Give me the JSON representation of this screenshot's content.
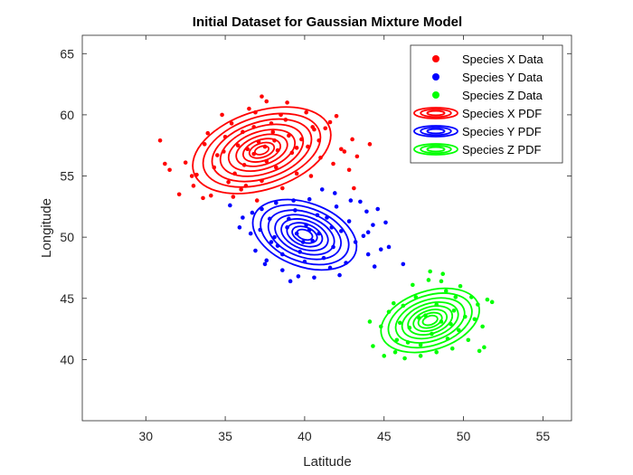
{
  "chart_data": {
    "type": "scatter",
    "title": "Initial Dataset for Gaussian Mixture Model",
    "xlabel": "Latitude",
    "ylabel": "Longitude",
    "xlim": [
      26,
      56.8
    ],
    "ylim": [
      35,
      66.5
    ],
    "xticks": [
      30,
      35,
      40,
      45,
      50,
      55
    ],
    "yticks": [
      40,
      45,
      50,
      55,
      60,
      65
    ],
    "grid": false,
    "legend_position": "top-right",
    "series": [
      {
        "name": "Species X Data",
        "color": "#ff0000",
        "marker": "dot",
        "center": [
          37.0,
          57.0
        ],
        "points": [
          [
            33.2,
            55.1
          ],
          [
            34.5,
            56.7
          ],
          [
            35.0,
            58.2
          ],
          [
            35.8,
            57.5
          ],
          [
            36.2,
            55.9
          ],
          [
            36.8,
            59.0
          ],
          [
            37.1,
            57.8
          ],
          [
            37.6,
            56.2
          ],
          [
            38.0,
            58.6
          ],
          [
            38.3,
            57.1
          ],
          [
            38.8,
            59.6
          ],
          [
            39.2,
            56.9
          ],
          [
            39.8,
            58.0
          ],
          [
            40.2,
            57.4
          ],
          [
            40.6,
            58.8
          ],
          [
            41.0,
            56.5
          ],
          [
            36.0,
            53.9
          ],
          [
            35.2,
            54.5
          ],
          [
            34.1,
            53.4
          ],
          [
            33.0,
            54.2
          ],
          [
            32.1,
            53.5
          ],
          [
            32.5,
            56.1
          ],
          [
            31.5,
            55.5
          ],
          [
            30.9,
            57.9
          ],
          [
            31.2,
            56.0
          ],
          [
            34.8,
            60.0
          ],
          [
            36.5,
            60.5
          ],
          [
            37.3,
            61.5
          ],
          [
            37.6,
            61.1
          ],
          [
            36.9,
            60.2
          ],
          [
            38.5,
            60.0
          ],
          [
            40.1,
            60.2
          ],
          [
            41.6,
            59.4
          ],
          [
            42.3,
            57.2
          ],
          [
            43.0,
            58.0
          ],
          [
            43.3,
            56.6
          ],
          [
            42.8,
            55.5
          ],
          [
            41.8,
            56.0
          ],
          [
            40.4,
            55.0
          ],
          [
            39.5,
            55.2
          ],
          [
            38.2,
            55.7
          ],
          [
            37.3,
            54.6
          ],
          [
            36.3,
            54.2
          ],
          [
            35.6,
            55.2
          ],
          [
            34.3,
            55.7
          ],
          [
            33.7,
            57.6
          ],
          [
            33.9,
            58.5
          ],
          [
            35.4,
            59.3
          ],
          [
            36.1,
            58.6
          ],
          [
            37.9,
            59.3
          ],
          [
            39.0,
            58.3
          ],
          [
            40.9,
            57.9
          ],
          [
            41.3,
            58.9
          ],
          [
            42.0,
            59.9
          ],
          [
            44.1,
            57.6
          ],
          [
            43.1,
            54.0
          ],
          [
            38.6,
            54.0
          ],
          [
            37.0,
            53.0
          ],
          [
            35.5,
            53.3
          ],
          [
            36.8,
            56.8
          ],
          [
            37.5,
            57.4
          ],
          [
            38.1,
            57.9
          ],
          [
            36.4,
            57.2
          ],
          [
            39.5,
            57.3
          ],
          [
            34.9,
            57.0
          ],
          [
            33.6,
            53.2
          ],
          [
            42.5,
            57.0
          ],
          [
            32.9,
            55.0
          ],
          [
            40.5,
            59.0
          ],
          [
            38.9,
            61.0
          ]
        ]
      },
      {
        "name": "Species Y Data",
        "color": "#0000ff",
        "marker": "dot",
        "center": [
          40.0,
          50.2
        ],
        "points": [
          [
            37.2,
            50.6
          ],
          [
            37.8,
            51.5
          ],
          [
            38.3,
            49.3
          ],
          [
            38.9,
            50.8
          ],
          [
            39.4,
            52.2
          ],
          [
            39.7,
            48.8
          ],
          [
            40.1,
            51.0
          ],
          [
            40.5,
            49.7
          ],
          [
            40.9,
            50.3
          ],
          [
            41.4,
            51.6
          ],
          [
            41.8,
            49.2
          ],
          [
            42.3,
            50.5
          ],
          [
            42.8,
            51.3
          ],
          [
            43.2,
            49.6
          ],
          [
            43.7,
            50.1
          ],
          [
            44.0,
            48.6
          ],
          [
            44.4,
            47.6
          ],
          [
            44.8,
            49.0
          ],
          [
            43.9,
            52.1
          ],
          [
            42.9,
            53.0
          ],
          [
            41.9,
            53.6
          ],
          [
            41.1,
            53.9
          ],
          [
            40.3,
            53.1
          ],
          [
            39.3,
            53.0
          ],
          [
            38.2,
            52.8
          ],
          [
            37.3,
            52.3
          ],
          [
            36.7,
            52.0
          ],
          [
            36.1,
            51.6
          ],
          [
            35.3,
            52.6
          ],
          [
            36.6,
            50.3
          ],
          [
            36.9,
            48.9
          ],
          [
            37.6,
            48.1
          ],
          [
            38.6,
            47.3
          ],
          [
            39.6,
            46.8
          ],
          [
            39.1,
            46.4
          ],
          [
            40.6,
            46.7
          ],
          [
            41.6,
            47.5
          ],
          [
            42.6,
            47.9
          ],
          [
            41.2,
            48.3
          ],
          [
            40.0,
            48.0
          ],
          [
            38.6,
            48.6
          ],
          [
            37.9,
            49.6
          ],
          [
            39.9,
            49.6
          ],
          [
            40.8,
            51.8
          ],
          [
            39.0,
            51.5
          ],
          [
            42.0,
            52.5
          ],
          [
            43.5,
            52.9
          ],
          [
            44.6,
            52.3
          ],
          [
            45.1,
            51.2
          ],
          [
            44.3,
            51.0
          ],
          [
            39.5,
            50.3
          ],
          [
            40.3,
            50.6
          ],
          [
            38.1,
            50.0
          ],
          [
            41.7,
            50.8
          ],
          [
            35.9,
            50.8
          ],
          [
            45.3,
            49.2
          ],
          [
            44.0,
            50.4
          ],
          [
            37.5,
            47.8
          ],
          [
            42.2,
            46.9
          ],
          [
            46.2,
            47.8
          ]
        ]
      },
      {
        "name": "Species Z Data",
        "color": "#00ff00",
        "marker": "dot",
        "center": [
          47.8,
          43.2
        ],
        "points": [
          [
            44.8,
            42.7
          ],
          [
            45.3,
            43.9
          ],
          [
            45.8,
            41.6
          ],
          [
            46.2,
            44.4
          ],
          [
            46.6,
            42.6
          ],
          [
            47.0,
            45.1
          ],
          [
            47.3,
            41.2
          ],
          [
            47.6,
            43.6
          ],
          [
            48.0,
            42.1
          ],
          [
            48.3,
            44.5
          ],
          [
            48.6,
            43.1
          ],
          [
            49.0,
            41.7
          ],
          [
            49.4,
            44.0
          ],
          [
            49.7,
            42.4
          ],
          [
            50.1,
            43.5
          ],
          [
            50.5,
            45.1
          ],
          [
            50.9,
            44.5
          ],
          [
            51.2,
            42.7
          ],
          [
            51.5,
            44.9
          ],
          [
            51.8,
            44.7
          ],
          [
            51.3,
            41.0
          ],
          [
            50.3,
            41.6
          ],
          [
            49.3,
            40.9
          ],
          [
            48.3,
            40.6
          ],
          [
            47.3,
            40.3
          ],
          [
            46.3,
            40.1
          ],
          [
            45.7,
            40.6
          ],
          [
            44.3,
            41.1
          ],
          [
            44.1,
            43.1
          ],
          [
            45.0,
            40.3
          ],
          [
            46.8,
            46.1
          ],
          [
            47.8,
            46.5
          ],
          [
            48.6,
            46.4
          ],
          [
            49.8,
            46.0
          ],
          [
            47.9,
            47.2
          ],
          [
            48.7,
            47.0
          ],
          [
            49.2,
            42.9
          ],
          [
            47.2,
            43.4
          ],
          [
            46.0,
            43.0
          ],
          [
            50.7,
            43.3
          ],
          [
            48.9,
            45.6
          ],
          [
            46.5,
            41.4
          ],
          [
            45.6,
            44.6
          ],
          [
            51.0,
            40.7
          ],
          [
            49.5,
            45.1
          ]
        ]
      }
    ],
    "pdf_contours": [
      {
        "name": "Species X PDF",
        "color": "#ff0000",
        "center": [
          37.3,
          57.1
        ],
        "rx": 4.5,
        "ry": 3.2,
        "angle": 18,
        "levels": [
          1.0,
          0.85,
          0.72,
          0.6,
          0.48,
          0.37,
          0.27,
          0.18,
          0.1
        ]
      },
      {
        "name": "Species Y PDF",
        "color": "#0000ff",
        "center": [
          40.0,
          50.2
        ],
        "rx": 3.4,
        "ry": 2.6,
        "angle": -20,
        "levels": [
          1.0,
          0.85,
          0.7,
          0.57,
          0.45,
          0.34,
          0.24,
          0.15
        ]
      },
      {
        "name": "Species Z PDF",
        "color": "#00ff00",
        "center": [
          47.9,
          43.2
        ],
        "rx": 3.2,
        "ry": 2.4,
        "angle": 18,
        "levels": [
          1.0,
          0.85,
          0.7,
          0.57,
          0.45,
          0.34,
          0.24,
          0.15
        ]
      }
    ]
  }
}
